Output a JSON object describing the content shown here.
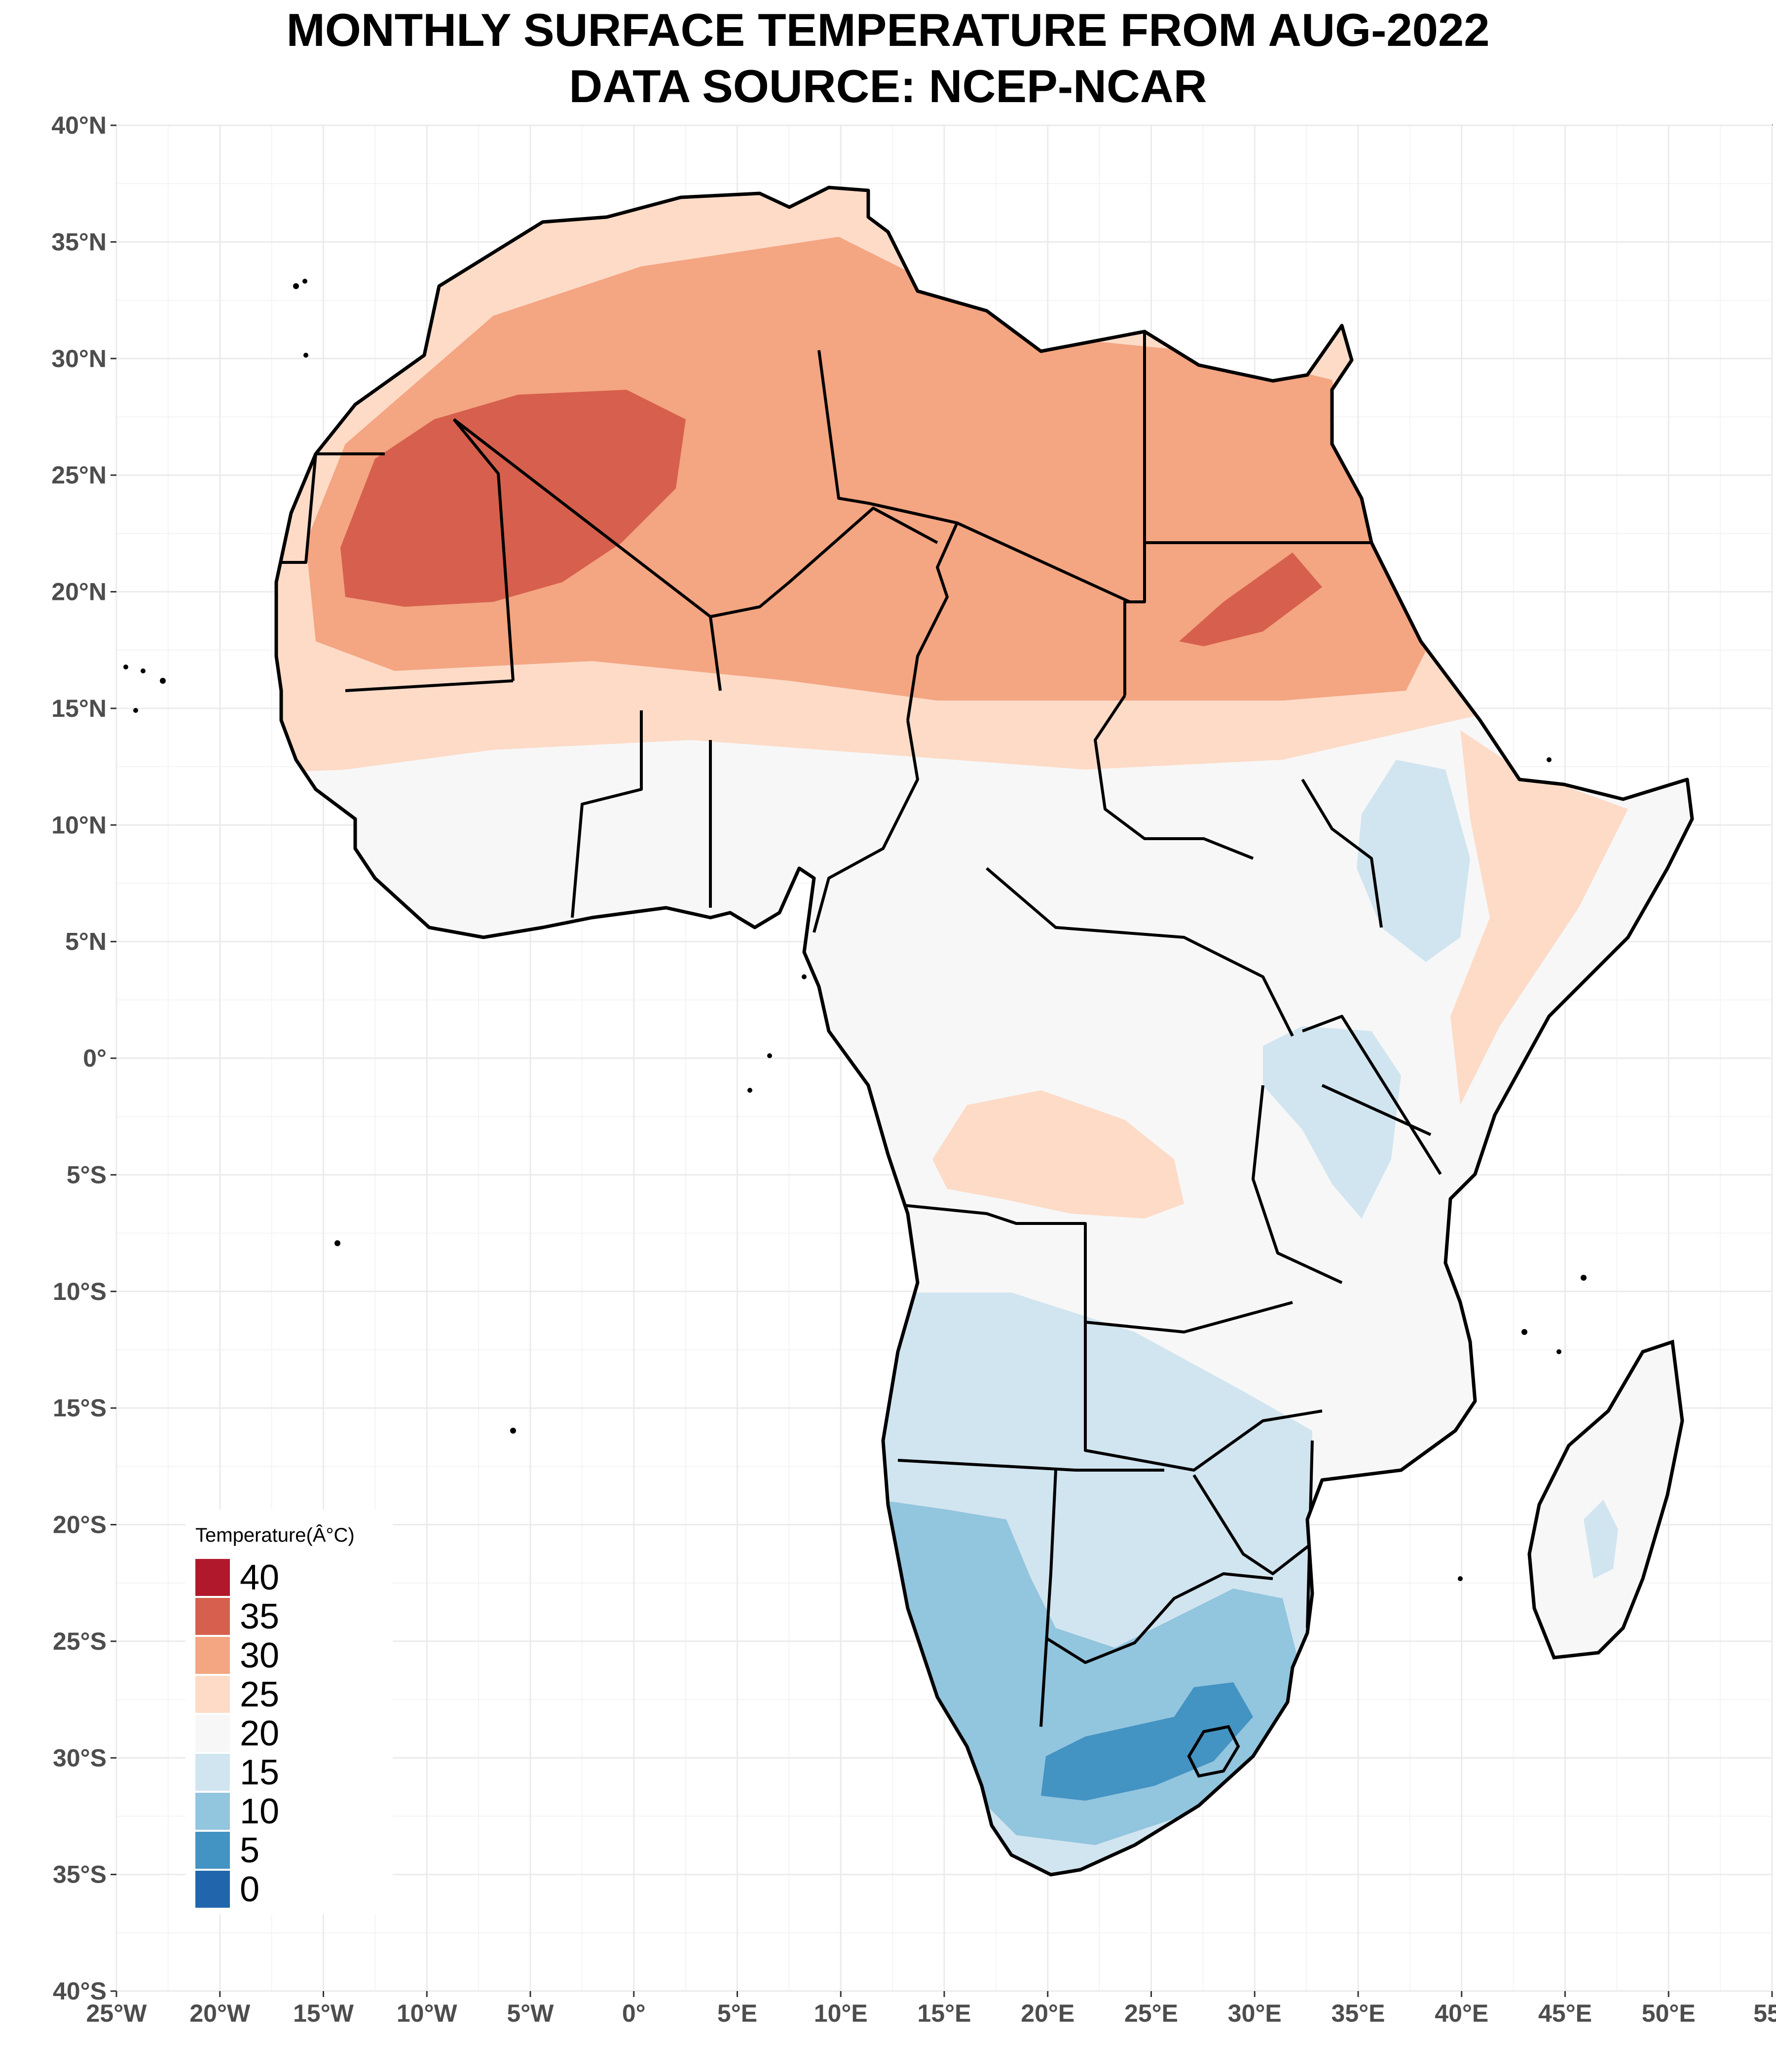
{
  "title": {
    "line1": "MONTHLY SURFACE TEMPERATURE FROM AUG-2022",
    "line2": "DATA SOURCE: NCEP-NCAR"
  },
  "map": {
    "region": "Africa",
    "variable": "Monthly surface temperature",
    "projection": "plate carree (longitude/latitude)",
    "extent": {
      "lon": [
        -25,
        55
      ],
      "lat": [
        -40,
        40
      ]
    },
    "background": "#ffffff",
    "grid": true,
    "boundaries_color": "#000000",
    "x_ticks": [
      "25°W",
      "20°W",
      "15°W",
      "10°W",
      "5°W",
      "0°",
      "5°E",
      "10°E",
      "15°E",
      "20°E",
      "25°E",
      "30°E",
      "35°E",
      "40°E",
      "45°E",
      "50°E",
      "55°"
    ],
    "y_ticks": [
      "40°N",
      "35°N",
      "30°N",
      "25°N",
      "20°N",
      "15°N",
      "10°N",
      "5°N",
      "0°",
      "5°S",
      "10°S",
      "15°S",
      "20°S",
      "25°S",
      "30°S",
      "35°S",
      "40°S"
    ]
  },
  "legend": {
    "title": "Temperature(Â°C)",
    "position": "bottom-left",
    "entries": [
      {
        "label": "40",
        "color": "#b2182b"
      },
      {
        "label": "35",
        "color": "#d6604d"
      },
      {
        "label": "30",
        "color": "#f4a582"
      },
      {
        "label": "25",
        "color": "#fddbc7"
      },
      {
        "label": "20",
        "color": "#f7f7f7"
      },
      {
        "label": "15",
        "color": "#d1e5f0"
      },
      {
        "label": "10",
        "color": "#92c5de"
      },
      {
        "label": "5",
        "color": "#4393c3"
      },
      {
        "label": "0",
        "color": "#2166ac"
      }
    ]
  }
}
